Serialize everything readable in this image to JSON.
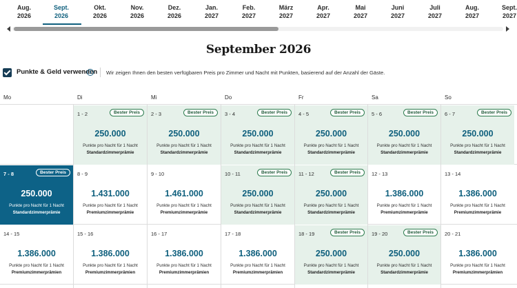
{
  "months": [
    {
      "m": "Aug.",
      "y": "2026",
      "selected": false
    },
    {
      "m": "Sept.",
      "y": "2026",
      "selected": true
    },
    {
      "m": "Okt.",
      "y": "2026",
      "selected": false
    },
    {
      "m": "Nov.",
      "y": "2026",
      "selected": false
    },
    {
      "m": "Dez.",
      "y": "2026",
      "selected": false
    },
    {
      "m": "Jan.",
      "y": "2027",
      "selected": false
    },
    {
      "m": "Feb.",
      "y": "2027",
      "selected": false
    },
    {
      "m": "März",
      "y": "2027",
      "selected": false
    },
    {
      "m": "Apr.",
      "y": "2027",
      "selected": false
    },
    {
      "m": "Mai",
      "y": "2027",
      "selected": false
    },
    {
      "m": "Juni",
      "y": "2027",
      "selected": false
    },
    {
      "m": "Juli",
      "y": "2027",
      "selected": false
    },
    {
      "m": "Aug.",
      "y": "2027",
      "selected": false
    },
    {
      "m": "Sept.",
      "y": "2027",
      "selected": false
    }
  ],
  "calendar_title": "September 2026",
  "points_money": {
    "label": "Punkte & Geld verwenden",
    "checked": true,
    "info_icon": "i",
    "description": "Wir zeigen Ihnen den besten verfügbaren Preis pro Zimmer und Nacht mit Punkten, basierend auf der Anzahl der Gäste."
  },
  "weekdays": [
    "Mo",
    "Di",
    "Mi",
    "Do",
    "Fr",
    "Sa",
    "So"
  ],
  "best_badge": "Bester Preis",
  "per_night_text": "Punkte pro Nacht für 1 Nacht",
  "colors": {
    "accent": "#0e5f7d",
    "best_bg": "#e6f1ea",
    "selected_bg": "#0d6287",
    "badge_border": "#2f7d50"
  },
  "weeks": [
    [
      null,
      {
        "range": "1 - 2",
        "price": "250.000",
        "room": "Standardzimmerprämie",
        "best": true
      },
      {
        "range": "2 - 3",
        "price": "250.000",
        "room": "Standardzimmerprämie",
        "best": true
      },
      {
        "range": "3 - 4",
        "price": "250.000",
        "room": "Standardzimmerprämie",
        "best": true
      },
      {
        "range": "4 - 5",
        "price": "250.000",
        "room": "Standardzimmerprämie",
        "best": true
      },
      {
        "range": "5 - 6",
        "price": "250.000",
        "room": "Standardzimmerprämie",
        "best": true
      },
      {
        "range": "6 - 7",
        "price": "250.000",
        "room": "Standardzimmerprämie",
        "best": true
      }
    ],
    [
      {
        "range": "7 - 8",
        "price": "250.000",
        "room": "Standardzimmerprämie",
        "best": true,
        "selected": true
      },
      {
        "range": "8 - 9",
        "price": "1.431.000",
        "room": "Premiumzimmerprämie",
        "best": false
      },
      {
        "range": "9 - 10",
        "price": "1.461.000",
        "room": "Premiumzimmerprämie",
        "best": false
      },
      {
        "range": "10 - 11",
        "price": "250.000",
        "room": "Standardzimmerprämie",
        "best": true
      },
      {
        "range": "11 - 12",
        "price": "250.000",
        "room": "Standardzimmerprämie",
        "best": true
      },
      {
        "range": "12 - 13",
        "price": "1.386.000",
        "room": "Premiumzimmerprämie",
        "best": false
      },
      {
        "range": "13 - 14",
        "price": "1.386.000",
        "room": "Premiumzimmerprämie",
        "best": false
      }
    ],
    [
      {
        "range": "14 - 15",
        "price": "1.386.000",
        "room": "Premiumzimmerprämien",
        "best": false
      },
      {
        "range": "15 - 16",
        "price": "1.386.000",
        "room": "Premiumzimmerprämien",
        "best": false
      },
      {
        "range": "16 - 17",
        "price": "1.386.000",
        "room": "Premiumzimmerprämien",
        "best": false
      },
      {
        "range": "17 - 18",
        "price": "1.386.000",
        "room": "Premiumzimmerprämien",
        "best": false
      },
      {
        "range": "18 - 19",
        "price": "250.000",
        "room": "Standardzimmerprämie",
        "best": true
      },
      {
        "range": "19 - 20",
        "price": "250.000",
        "room": "Standardzimmerprämie",
        "best": true
      },
      {
        "range": "20 - 21",
        "price": "1.386.000",
        "room": "Premiumzimmerprämien",
        "best": false
      }
    ]
  ]
}
